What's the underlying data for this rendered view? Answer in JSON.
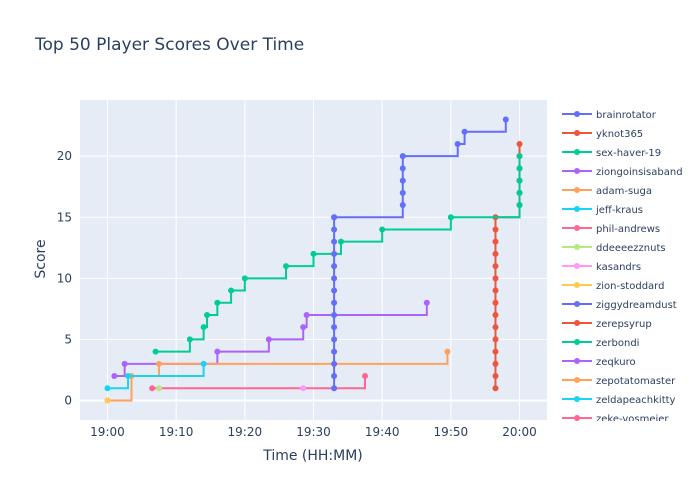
{
  "chart_data": {
    "type": "line",
    "line_shape": "step",
    "title": "Top 50 Player Scores Over Time",
    "xlabel": "Time (HH:MM)",
    "ylabel": "Score",
    "x_unit": "HH:MM",
    "xlim": [
      "18:56",
      "20:04"
    ],
    "ylim": [
      -1.6,
      24.6
    ],
    "x_ticks": [
      "19:00",
      "19:10",
      "19:20",
      "19:30",
      "19:40",
      "19:50",
      "20:00"
    ],
    "y_ticks": [
      0,
      5,
      10,
      15,
      20
    ],
    "grid": true,
    "legend_placement": "right (scrollable, truncated)",
    "plot_background": "#e5ecf6",
    "series": [
      {
        "name": "brainrotator",
        "color": "#636efa",
        "points": [
          [
            "19:33",
            15
          ],
          [
            "19:43",
            16
          ],
          [
            "19:43",
            17
          ],
          [
            "19:43",
            18
          ],
          [
            "19:43",
            19
          ],
          [
            "19:43",
            20
          ],
          [
            "19:51",
            21
          ],
          [
            "19:52",
            22
          ],
          [
            "19:58",
            23
          ]
        ]
      },
      {
        "name": "yknot365",
        "color": "#ef553b",
        "points": [
          [
            "19:56.5",
            1
          ],
          [
            "19:56.5",
            2
          ],
          [
            "19:56.5",
            3
          ],
          [
            "19:56.5",
            4
          ],
          [
            "19:56.5",
            5
          ],
          [
            "19:56.5",
            6
          ],
          [
            "19:56.5",
            7
          ],
          [
            "19:56.5",
            8
          ],
          [
            "19:56.5",
            9
          ],
          [
            "19:56.5",
            10
          ],
          [
            "19:56.5",
            11
          ],
          [
            "19:56.5",
            12
          ],
          [
            "19:56.5",
            13
          ],
          [
            "19:56.5",
            14
          ],
          [
            "19:56.5",
            15
          ],
          [
            "20:00",
            16
          ],
          [
            "20:00",
            17
          ],
          [
            "20:00",
            18
          ],
          [
            "20:00",
            19
          ],
          [
            "20:00",
            20
          ],
          [
            "20:00",
            21
          ]
        ]
      },
      {
        "name": "sex-haver-19",
        "color": "#00cc96",
        "points": [
          [
            "19:07",
            4
          ],
          [
            "19:12",
            5
          ],
          [
            "19:14",
            6
          ],
          [
            "19:14.5",
            7
          ],
          [
            "19:16",
            8
          ],
          [
            "19:18",
            9
          ],
          [
            "19:20",
            10
          ],
          [
            "19:26",
            11
          ],
          [
            "19:30",
            12
          ],
          [
            "19:34",
            13
          ],
          [
            "19:40",
            14
          ],
          [
            "19:50",
            15
          ],
          [
            "20:00",
            16
          ],
          [
            "20:00",
            17
          ],
          [
            "20:00",
            18
          ],
          [
            "20:00",
            19
          ],
          [
            "20:00",
            20
          ]
        ]
      },
      {
        "name": "ziongoinsisaband",
        "color": "#ab63fa",
        "points": [
          [
            "19:01",
            2
          ],
          [
            "19:02.5",
            3
          ],
          [
            "19:16",
            4
          ],
          [
            "19:23.5",
            5
          ],
          [
            "19:28.5",
            6
          ],
          [
            "19:29",
            7
          ],
          [
            "19:46.5",
            8
          ]
        ]
      },
      {
        "name": "adam-suga",
        "color": "#ffa15a",
        "points": [
          [
            "19:00",
            0
          ],
          [
            "19:03.5",
            2
          ],
          [
            "19:07.5",
            3
          ],
          [
            "19:49.5",
            4
          ]
        ]
      },
      {
        "name": "jeff-kraus",
        "color": "#19d3f3",
        "points": [
          [
            "19:00",
            1
          ],
          [
            "19:03",
            2
          ],
          [
            "19:14",
            3
          ]
        ]
      },
      {
        "name": "phil-andrews",
        "color": "#ff6692",
        "points": [
          [
            "19:06.5",
            1
          ],
          [
            "19:37.5",
            2
          ]
        ]
      },
      {
        "name": "ddeeeezznuts",
        "color": "#b6e880",
        "points": [
          [
            "19:07.5",
            1
          ]
        ]
      },
      {
        "name": "kasandrs",
        "color": "#ff97ff",
        "points": [
          [
            "19:28.5",
            1
          ]
        ]
      },
      {
        "name": "zion-stoddard",
        "color": "#fecb52",
        "points": [
          [
            "19:00",
            0
          ]
        ]
      },
      {
        "name": "ziggydreamdust",
        "color": "#636efa",
        "points": [
          [
            "19:33",
            1
          ],
          [
            "19:33",
            2
          ],
          [
            "19:33",
            3
          ],
          [
            "19:33",
            4
          ],
          [
            "19:33",
            5
          ],
          [
            "19:33",
            6
          ],
          [
            "19:33",
            7
          ],
          [
            "19:33",
            8
          ],
          [
            "19:33",
            9
          ],
          [
            "19:33",
            10
          ],
          [
            "19:33",
            11
          ],
          [
            "19:33",
            12
          ],
          [
            "19:33",
            13
          ],
          [
            "19:33",
            14
          ],
          [
            "19:33",
            15
          ]
        ]
      },
      {
        "name": "zerepsyrup",
        "color": "#ef553b",
        "points": []
      },
      {
        "name": "zerbondi",
        "color": "#00cc96",
        "points": []
      },
      {
        "name": "zeqkuro",
        "color": "#ab63fa",
        "points": []
      },
      {
        "name": "zepotatomaster",
        "color": "#ffa15a",
        "points": []
      },
      {
        "name": "zeldapeachkitty",
        "color": "#19d3f3",
        "points": []
      },
      {
        "name": "zeke-vosmeier",
        "color": "#ff6692",
        "points": []
      }
    ]
  }
}
